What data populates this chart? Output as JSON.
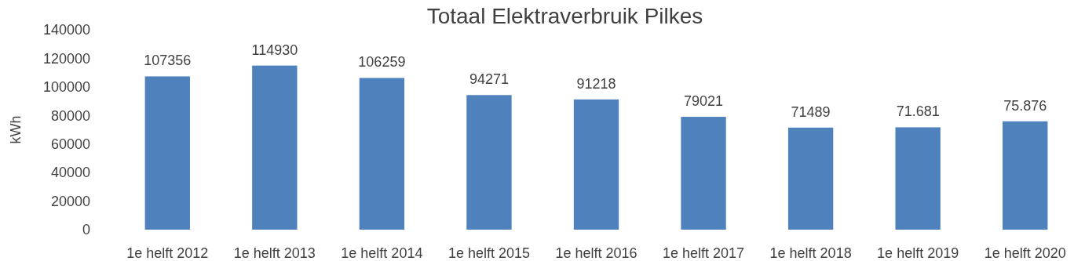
{
  "chart_data": {
    "type": "bar",
    "title": "Totaal Elektraverbruik Pilkes",
    "ylabel": "kWh",
    "categories": [
      "1e helft 2012",
      "1e helft 2013",
      "1e helft 2014",
      "1e helft 2015",
      "1e helft 2016",
      "1e helft 2017",
      "1e helft 2018",
      "1e helft 2019",
      "1e helft 2020"
    ],
    "values": [
      107356,
      114930,
      106259,
      94271,
      91218,
      79021,
      71489,
      71681,
      75876
    ],
    "value_labels": [
      "107356",
      "114930",
      "106259",
      "94271",
      "91218",
      "79021",
      "71489",
      "71.681",
      "75.876"
    ],
    "color": "#4f81bd",
    "ylim": [
      0,
      140000
    ],
    "yticks": [
      0,
      20000,
      40000,
      60000,
      80000,
      100000,
      120000,
      140000
    ],
    "grid": false
  }
}
